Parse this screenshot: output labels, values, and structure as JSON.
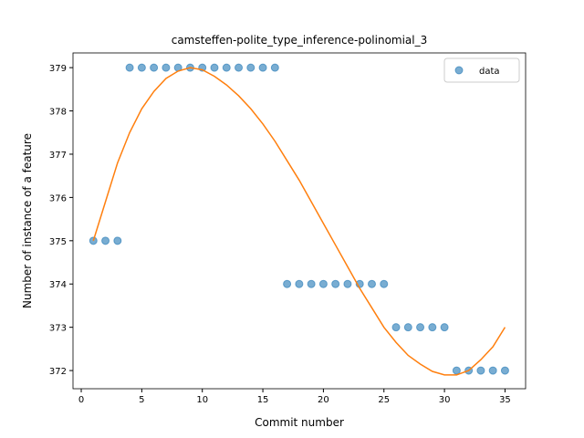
{
  "chart_data": {
    "type": "scatter",
    "title": "camsteffen-polite_type_inference-polinomial_3",
    "x_label": "Commit number",
    "y_label": "Number of instance of a feature",
    "x": [
      1,
      2,
      3,
      4,
      5,
      6,
      7,
      8,
      9,
      10,
      11,
      12,
      13,
      14,
      15,
      16,
      17,
      18,
      19,
      20,
      21,
      22,
      23,
      24,
      25,
      26,
      27,
      28,
      29,
      30,
      31,
      32,
      33,
      34,
      35
    ],
    "series": [
      {
        "name": "data",
        "color": "#1f77b4",
        "values": [
          375,
          375,
          375,
          379,
          379,
          379,
          379,
          379,
          379,
          379,
          379,
          379,
          379,
          379,
          379,
          379,
          374,
          374,
          374,
          374,
          374,
          374,
          374,
          374,
          374,
          373,
          373,
          373,
          373,
          373,
          372,
          372,
          372,
          372,
          372
        ]
      },
      {
        "type": "line",
        "color": "#ff7f0e",
        "values": [
          375.0,
          375.9,
          376.8,
          377.5,
          378.05,
          378.45,
          378.75,
          378.92,
          379.0,
          378.95,
          378.8,
          378.6,
          378.35,
          378.05,
          377.7,
          377.3,
          376.85,
          376.4,
          375.9,
          375.4,
          374.9,
          374.4,
          373.9,
          373.45,
          373.0,
          372.65,
          372.35,
          372.15,
          371.98,
          371.9,
          371.9,
          372.0,
          372.25,
          372.55,
          373.0
        ]
      }
    ],
    "xlim": [
      -0.68,
      36.7
    ],
    "xticks": [
      0,
      5,
      10,
      15,
      20,
      25,
      30,
      35
    ],
    "ylim": [
      371.58,
      379.34
    ],
    "yticks": [
      372,
      373,
      374,
      375,
      376,
      377,
      378,
      379
    ],
    "legend": "upper right"
  }
}
